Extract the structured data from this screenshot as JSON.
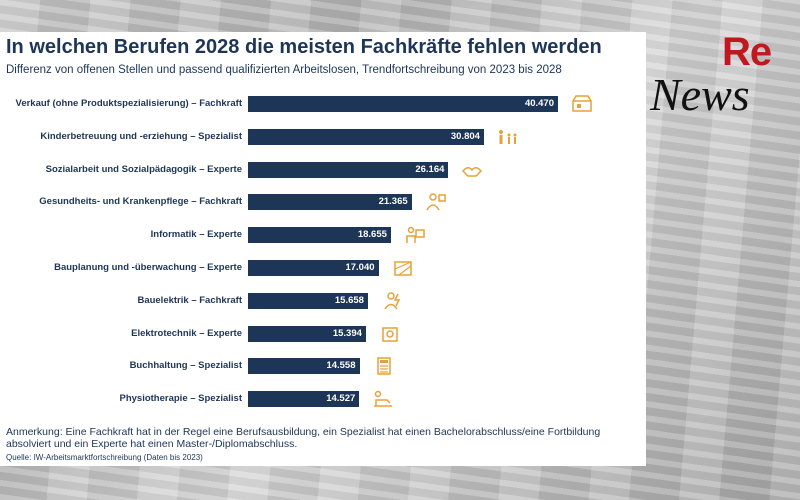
{
  "title": "In welchen Berufen 2028 die meisten Fachkräfte fehlen werden",
  "subtitle": "Differenz von offenen Stellen und passend qualifizierten Arbeitslosen, Trendfortschreibung von 2023 bis 2028",
  "note": "Anmerkung: Eine Fachkraft hat in der Regel eine Berufsausbildung, ein Spezialist hat einen Bachelorabschluss/eine Fortbildung absolviert und ein Experte hat einen Master-/Diplomabschluss.",
  "source": "Quelle: IW-Arbeitsmarktfortschreibung (Daten bis 2023)",
  "logo": {
    "re": "Re",
    "news": "News"
  },
  "colors": {
    "bar": "#1d3557",
    "icon": "#e8a13a",
    "logo_red": "#c0181e"
  },
  "chart_data": {
    "type": "bar",
    "orientation": "horizontal",
    "title": "In welchen Berufen 2028 die meisten Fachkräfte fehlen werden",
    "xlim": [
      0,
      40470
    ],
    "categories": [
      "Verkauf (ohne Produktspezialisierung) – Fachkraft",
      "Kinderbetreuung und -erziehung – Spezialist",
      "Sozialarbeit und Sozialpädagogik – Experte",
      "Gesundheits- und Krankenpflege – Fachkraft",
      "Informatik – Experte",
      "Bauplanung und -überwachung – Experte",
      "Bauelektrik – Fachkraft",
      "Elektrotechnik – Experte",
      "Buchhaltung – Spezialist",
      "Physiotherapie – Spezialist"
    ],
    "values": [
      40470,
      30804,
      26164,
      21365,
      18655,
      17040,
      15658,
      15394,
      14558,
      14527
    ],
    "value_labels": [
      "40.470",
      "30.804",
      "26.164",
      "21.365",
      "18.655",
      "17.040",
      "15.658",
      "15.394",
      "14.558",
      "14.527"
    ],
    "icons": [
      "shop-icon",
      "family-icon",
      "handshake-icon",
      "nurse-icon",
      "computer-user-icon",
      "blueprint-icon",
      "electrician-icon",
      "circuit-board-icon",
      "calculator-icon",
      "therapy-icon"
    ]
  }
}
